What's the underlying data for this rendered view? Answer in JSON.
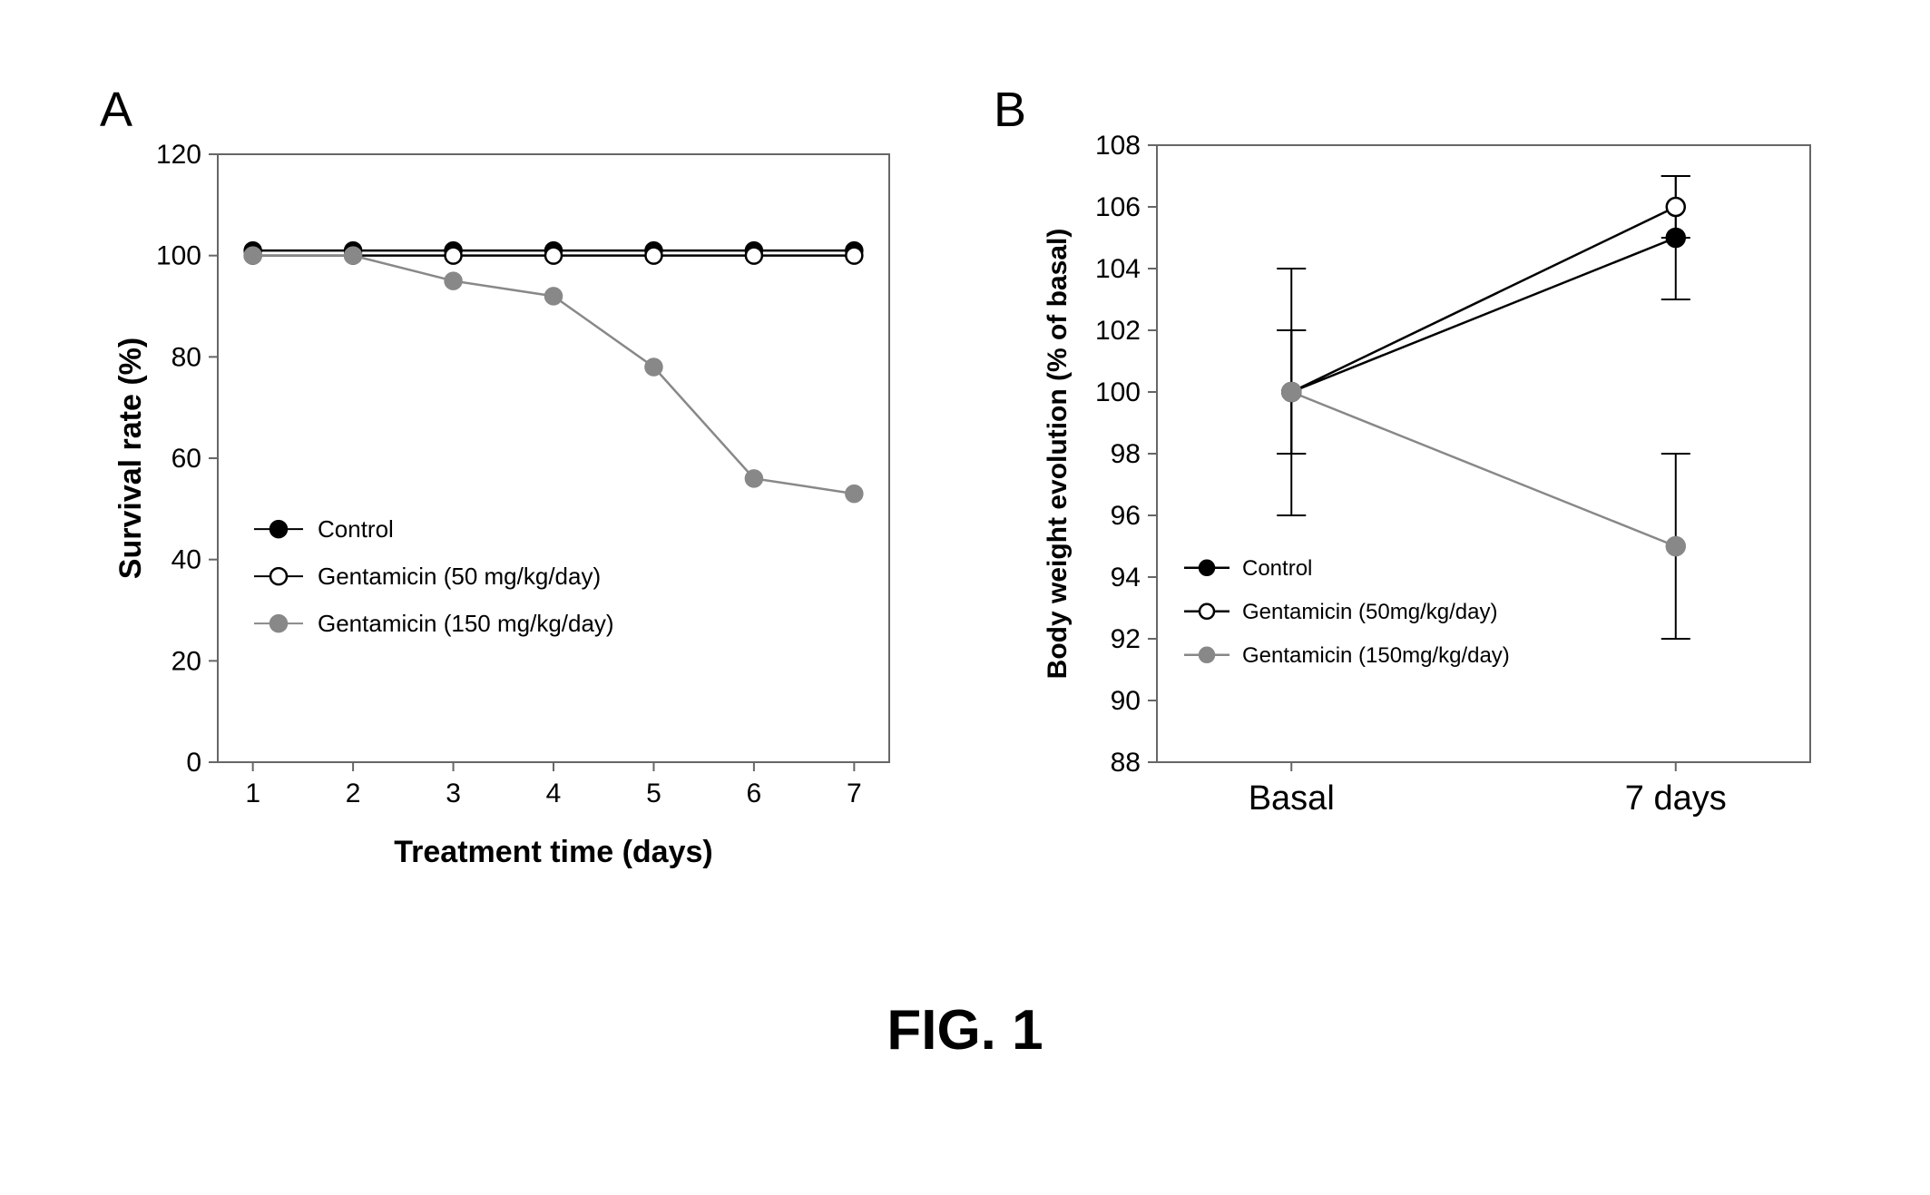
{
  "figure": {
    "caption": "FIG. 1",
    "caption_fontsize": 62,
    "background_color": "#ffffff"
  },
  "panelA": {
    "label": "A",
    "type": "line",
    "xlabel": "Treatment time (days)",
    "ylabel": "Survival rate (%)",
    "xlabel_fontsize": 34,
    "ylabel_fontsize": 34,
    "tick_fontsize": 30,
    "xlim": [
      1,
      7
    ],
    "ylim": [
      0,
      120
    ],
    "xtick_step": 1,
    "ytick_step": 20,
    "xticks": [
      1,
      2,
      3,
      4,
      5,
      6,
      7
    ],
    "yticks": [
      0,
      20,
      40,
      60,
      80,
      100,
      120
    ],
    "grid": false,
    "plot_bg": "#ffffff",
    "axis_color": "#666666",
    "border_all_sides": true,
    "legend": {
      "position": "inside-bottom-left",
      "fontsize": 26,
      "items": [
        {
          "label": "Control",
          "marker_fill": "#000000",
          "marker_edge": "#000000",
          "line_color": "#000000"
        },
        {
          "label": "Gentamicin (50 mg/kg/day)",
          "marker_fill": "#ffffff",
          "marker_edge": "#000000",
          "line_color": "#000000"
        },
        {
          "label": "Gentamicin (150 mg/kg/day)",
          "marker_fill": "#888888",
          "marker_edge": "#888888",
          "line_color": "#888888"
        }
      ]
    },
    "series": [
      {
        "name": "Control",
        "x": [
          1,
          2,
          3,
          4,
          5,
          6,
          7
        ],
        "y": [
          101,
          101,
          101,
          101,
          101,
          101,
          101
        ],
        "line_color": "#000000",
        "line_width": 2.5,
        "marker_fill": "#000000",
        "marker_edge": "#000000",
        "marker_radius": 9
      },
      {
        "name": "Gentamicin 50",
        "x": [
          1,
          2,
          3,
          4,
          5,
          6,
          7
        ],
        "y": [
          100,
          100,
          100,
          100,
          100,
          100,
          100
        ],
        "line_color": "#000000",
        "line_width": 2.5,
        "marker_fill": "#ffffff",
        "marker_edge": "#000000",
        "marker_radius": 9
      },
      {
        "name": "Gentamicin 150",
        "x": [
          1,
          2,
          3,
          4,
          5,
          6,
          7
        ],
        "y": [
          100,
          100,
          95,
          92,
          78,
          56,
          53
        ],
        "line_color": "#888888",
        "line_width": 2.5,
        "marker_fill": "#888888",
        "marker_edge": "#888888",
        "marker_radius": 9
      }
    ]
  },
  "panelB": {
    "label": "B",
    "type": "line",
    "xlabel": "",
    "ylabel": "Body weight evolution (% of  basal)",
    "xlabel_fontsize": 34,
    "ylabel_fontsize": 30,
    "tick_fontsize": 30,
    "xticklabels": [
      "Basal",
      "7 days"
    ],
    "xtick_positions": [
      0,
      1
    ],
    "xlim": [
      -0.35,
      1.35
    ],
    "ylim": [
      88,
      108
    ],
    "ytick_step": 2,
    "yticks": [
      88,
      90,
      92,
      94,
      96,
      98,
      100,
      102,
      104,
      106,
      108
    ],
    "grid": false,
    "plot_bg": "#ffffff",
    "axis_color": "#666666",
    "border_all_sides": true,
    "xtick_fontsize": 38,
    "legend": {
      "position": "inside-bottom-left",
      "fontsize": 24,
      "items": [
        {
          "label": "Control",
          "marker_fill": "#000000",
          "marker_edge": "#000000",
          "line_color": "#000000"
        },
        {
          "label": "Gentamicin (50mg/kg/day)",
          "marker_fill": "#ffffff",
          "marker_edge": "#000000",
          "line_color": "#000000"
        },
        {
          "label": "Gentamicin (150mg/kg/day)",
          "marker_fill": "#888888",
          "marker_edge": "#888888",
          "line_color": "#888888"
        }
      ]
    },
    "error_cap_width": 16,
    "series": [
      {
        "name": "Control",
        "x": [
          0,
          1
        ],
        "y": [
          100,
          105
        ],
        "err": [
          2,
          2
        ],
        "line_color": "#000000",
        "line_width": 2.5,
        "marker_fill": "#000000",
        "marker_edge": "#000000",
        "marker_radius": 10
      },
      {
        "name": "Gentamicin 50",
        "x": [
          0,
          1
        ],
        "y": [
          100,
          106
        ],
        "err": [
          2,
          1
        ],
        "line_color": "#000000",
        "line_width": 2.5,
        "marker_fill": "#ffffff",
        "marker_edge": "#000000",
        "marker_radius": 10
      },
      {
        "name": "Gentamicin 150",
        "x": [
          0,
          1
        ],
        "y": [
          100,
          95
        ],
        "err": [
          4,
          3
        ],
        "line_color": "#888888",
        "line_width": 2.5,
        "marker_fill": "#888888",
        "marker_edge": "#888888",
        "marker_radius": 10
      }
    ]
  }
}
